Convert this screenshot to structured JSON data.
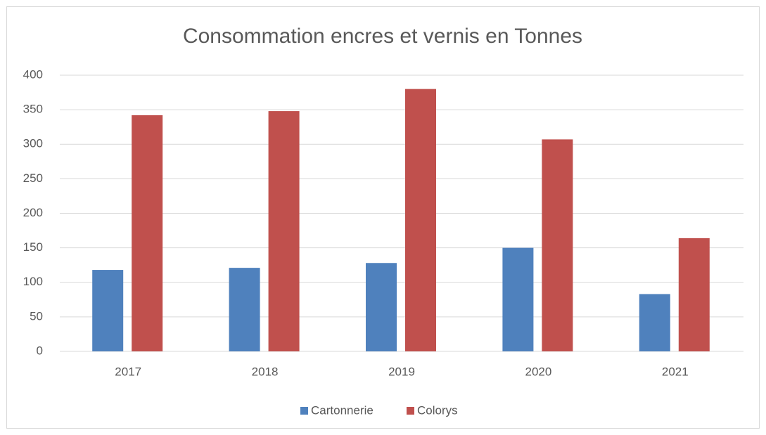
{
  "chart_data": {
    "type": "bar",
    "title": "Consommation encres et vernis en Tonnes",
    "categories": [
      "2017",
      "2018",
      "2019",
      "2020",
      "2021"
    ],
    "series": [
      {
        "name": "Cartonnerie",
        "color": "#4f81bd",
        "values": [
          118,
          121,
          128,
          150,
          83
        ]
      },
      {
        "name": "Colorys",
        "color": "#c0504d",
        "values": [
          342,
          348,
          380,
          307,
          164
        ]
      }
    ],
    "ylim": [
      0,
      400
    ],
    "yticks": [
      0,
      50,
      100,
      150,
      200,
      250,
      300,
      350,
      400
    ],
    "grid": true,
    "legend": "bottom"
  }
}
